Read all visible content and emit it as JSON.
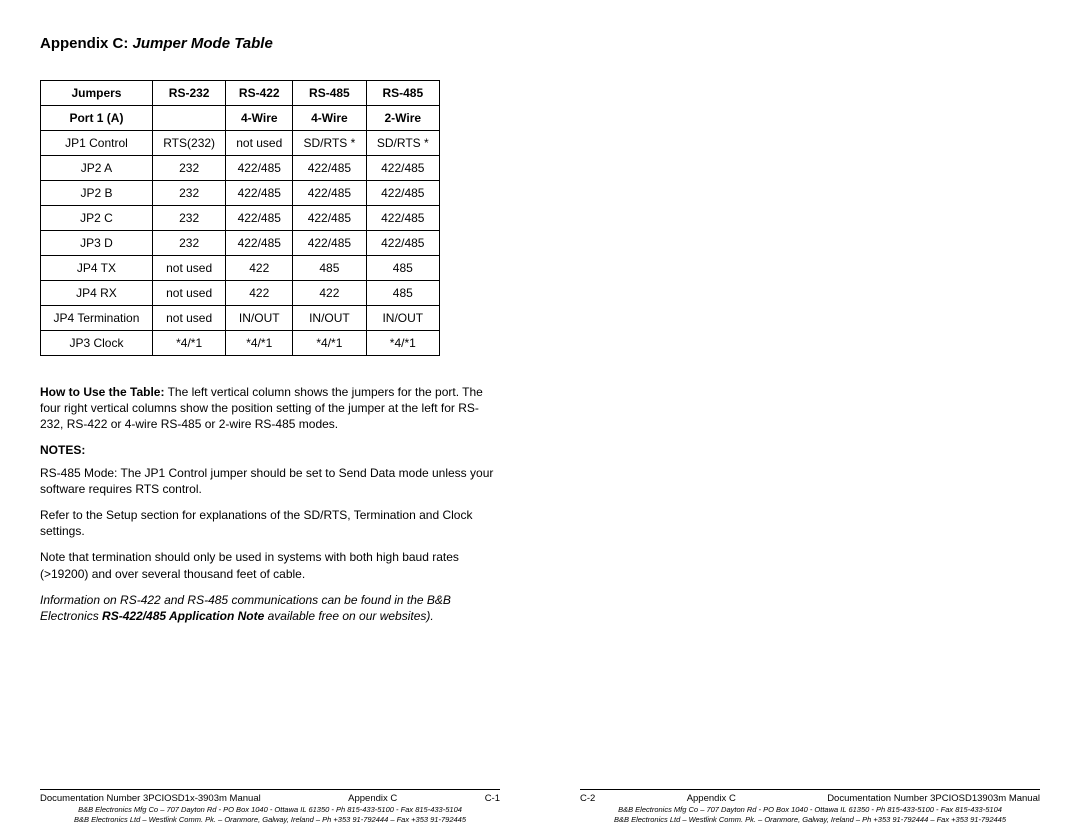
{
  "heading": {
    "prefix": "Appendix C:",
    "title": "Jumper Mode Table"
  },
  "table": {
    "header_row1": [
      "Jumpers",
      "RS-232",
      "RS-422",
      "RS-485",
      "RS-485"
    ],
    "header_row2": [
      "Port 1 (A)",
      "",
      "4-Wire",
      "4-Wire",
      "2-Wire"
    ],
    "rows": [
      [
        "JP1 Control",
        "RTS(232)",
        "not used",
        "SD/RTS *",
        "SD/RTS *"
      ],
      [
        "JP2 A",
        "232",
        "422/485",
        "422/485",
        "422/485"
      ],
      [
        "JP2 B",
        "232",
        "422/485",
        "422/485",
        "422/485"
      ],
      [
        "JP2 C",
        "232",
        "422/485",
        "422/485",
        "422/485"
      ],
      [
        "JP3 D",
        "232",
        "422/485",
        "422/485",
        "422/485"
      ],
      [
        "JP4 TX",
        "not used",
        "422",
        "485",
        "485"
      ],
      [
        "JP4 RX",
        "not used",
        "422",
        "422",
        "485"
      ],
      [
        "JP4 Termination",
        "not used",
        "IN/OUT",
        "IN/OUT",
        "IN/OUT"
      ],
      [
        "JP3 Clock",
        "*4/*1",
        "*4/*1",
        "*4/*1",
        "*4/*1"
      ]
    ]
  },
  "howto_label": "How to Use the Table:",
  "howto_text": " The left vertical column shows the jumpers for the port. The four right vertical columns show the position setting of the jumper at the left for RS-232, RS-422 or 4-wire RS-485 or 2-wire RS-485 modes.",
  "notes_heading": "NOTES:",
  "note1": "RS-485 Mode: The JP1 Control jumper should be set to Send Data mode unless your software requires RTS control.",
  "note2": "Refer to the Setup section for explanations of the SD/RTS, Termination and Clock settings.",
  "note3": "Note that termination should only be used in systems with both high baud rates (>19200) and over several thousand feet of cable.",
  "note4_a": "Information on RS-422 and RS-485 communications can be found in the B&B Electronics ",
  "note4_b": "RS-422/485 Application Note",
  "note4_c": " available free on our websites).",
  "footer_left": {
    "doc": "Documentation Number 3PCIOSD1x-3903m Manual",
    "mid": "Appendix C",
    "page": "C-1",
    "tiny1": "B&B Electronics Mfg Co – 707 Dayton Rd - PO Box 1040 - Ottawa IL 61350 - Ph 815-433-5100 - Fax 815-433-5104",
    "tiny2": "B&B Electronics Ltd – Westlink Comm. Pk. – Oranmore, Galway, Ireland – Ph +353 91-792444 – Fax +353 91-792445"
  },
  "footer_right": {
    "page": "C-2",
    "mid": "Appendix C",
    "doc": "Documentation Number 3PCIOSD13903m Manual",
    "tiny1": "B&B Electronics Mfg Co – 707 Dayton Rd - PO Box 1040 - Ottawa IL 61350 - Ph 815-433-5100 - Fax 815-433-5104",
    "tiny2": "B&B Electronics Ltd – Westlink Comm. Pk. – Oranmore, Galway, Ireland – Ph +353 91-792444 – Fax +353 91-792445"
  }
}
